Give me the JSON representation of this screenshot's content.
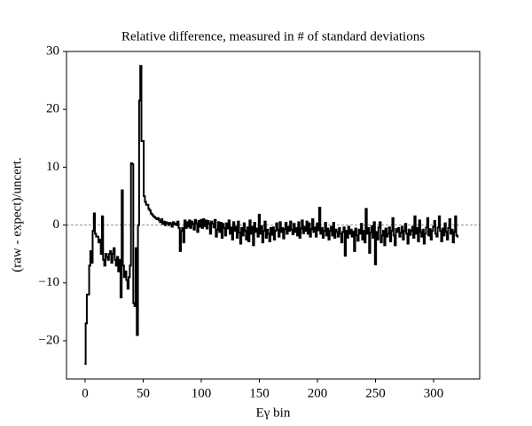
{
  "chart_data": {
    "type": "step",
    "title": "Relative difference, measured in # of standard deviations",
    "xlabel": "Eγ bin",
    "ylabel": "(raw - expect)/uncert.",
    "color": "#000000",
    "reference_line": 0,
    "xlim": [
      -16,
      339.7
    ],
    "ylim": [
      -26.6,
      30
    ],
    "xticks": [
      0,
      50,
      100,
      150,
      200,
      250,
      300
    ],
    "yticks": [
      {
        "value": -20,
        "label": "−20"
      },
      {
        "value": -10,
        "label": "−10"
      },
      0,
      10,
      20,
      30
    ],
    "values": [
      -24,
      -17,
      -12,
      -12,
      -7,
      -4.5,
      -6.5,
      -1,
      2,
      -1.5,
      -2,
      -2,
      -3,
      -2.5,
      -5,
      1.5,
      -6,
      -7,
      -5,
      -5.5,
      -6,
      -5,
      -4.5,
      -6.5,
      -5,
      -4,
      -6,
      -7,
      -5.5,
      -8,
      -6,
      -12.5,
      6,
      -7,
      -9,
      -8,
      -9.5,
      -11,
      -9,
      -7,
      10.7,
      10.5,
      -13.5,
      -14,
      -4,
      -19,
      0,
      21.5,
      27.5,
      14.5,
      14.5,
      5,
      4,
      3.5,
      3.5,
      2.8,
      2.5,
      2,
      1.8,
      1.5,
      1.4,
      1.2,
      1,
      1.2,
      0.8,
      0.5,
      1,
      0.2,
      0.6,
      0,
      0.5,
      0.3,
      0,
      0.4,
      0.2,
      -0.3,
      0.5,
      0.1,
      0.3,
      0,
      0.6,
      -0.5,
      -4.5,
      -1,
      -0.5,
      -3,
      0.8,
      -0.5,
      0.5,
      -0.3,
      0.8,
      -0.5,
      0.6,
      0.2,
      -0.8,
      0.9,
      0.3,
      -1.2,
      0.7,
      -0.3,
      0.9,
      -0.5,
      1,
      -0.2,
      0.8,
      -0.6,
      0.7,
      0.3,
      -1.5,
      0.6,
      0.2,
      -0.4,
      0.9,
      -2,
      -0.8,
      0.5,
      -1.2,
      0.4,
      -2.2,
      0.2,
      -0.5,
      -1.8,
      0.3,
      -0.6,
      0.8,
      -1.5,
      -0.4,
      -2.5,
      0.5,
      -1,
      -0.3,
      -2.2,
      0.6,
      -1.3,
      -3.2,
      -0.5,
      -1.8,
      0.3,
      -1,
      -2.5,
      -0.4,
      -2.8,
      0.8,
      -1.5,
      -0.3,
      -3.5,
      0.4,
      -1.2,
      -0.6,
      -2,
      1.8,
      -1.5,
      -0.2,
      -3,
      -1,
      0.6,
      -2.2,
      -0.8,
      -1.5,
      -2.8,
      -0.5,
      -1.7,
      -0.4,
      -2.5,
      -1,
      0.3,
      -0.8,
      -2,
      0.5,
      -1.2,
      -0.5,
      -2.3,
      -0.7,
      0.4,
      -1.5,
      -0.3,
      -1,
      0.6,
      -0.8,
      -1.6,
      0.2,
      -1.2,
      -0.5,
      -1.8,
      0.5,
      -2.2,
      -0.6,
      0.8,
      -1.4,
      -0.3,
      -1,
      0.6,
      -1.5,
      0.3,
      -2,
      -0.7,
      1,
      -1.2,
      -0.4,
      -2,
      0.3,
      -0.9,
      3,
      -1.5,
      -0.5,
      -2.2,
      -1,
      0.4,
      -1.8,
      -0.6,
      -2.5,
      -1,
      -0.3,
      -1.8,
      0.4,
      -2.2,
      -0.8,
      -1.2,
      -2,
      -0.5,
      -1.5,
      -3,
      -1.2,
      -0.4,
      -5.3,
      -1,
      -2.2,
      -0.3,
      -1.5,
      -0.8,
      -2,
      -1.1,
      -4.5,
      -0.6,
      -1.8,
      -2.7,
      -0.8,
      -1.5,
      0.2,
      -2.5,
      -1,
      -3,
      2.8,
      -1.5,
      -0.5,
      -4.8,
      -1.3,
      -0.2,
      -2.2,
      0.5,
      -6.8,
      -1.2,
      -2.5,
      -0.4,
      0.5,
      -3,
      -1.8,
      -1,
      -3.5,
      -0.6,
      -2,
      -1.5,
      -0.4,
      -2.8,
      -1,
      1.2,
      -1.8,
      -3.5,
      -0.7,
      -1.2,
      -0.5,
      -2,
      -1.3,
      -0.3,
      -2.5,
      -1,
      0.2,
      -1.5,
      -3.2,
      -0.8,
      -1.7,
      -1,
      -0.3,
      -2.2,
      1.5,
      -1.5,
      -0.5,
      -2.8,
      0.8,
      -1.2,
      -2,
      -0.8,
      -3.2,
      -1.5,
      -0.4,
      1.2,
      -1.8,
      -0.7,
      -2.5,
      -1,
      -0.3,
      0.7,
      -1.5,
      -2,
      -0.4,
      1.5,
      -1,
      -2.8,
      -0.6,
      -1.8,
      0.3,
      -1.2,
      -2.5,
      -0.5,
      1,
      -1.5,
      -0.8,
      -3,
      -1.2,
      1.5,
      -1.8,
      -2
    ]
  }
}
